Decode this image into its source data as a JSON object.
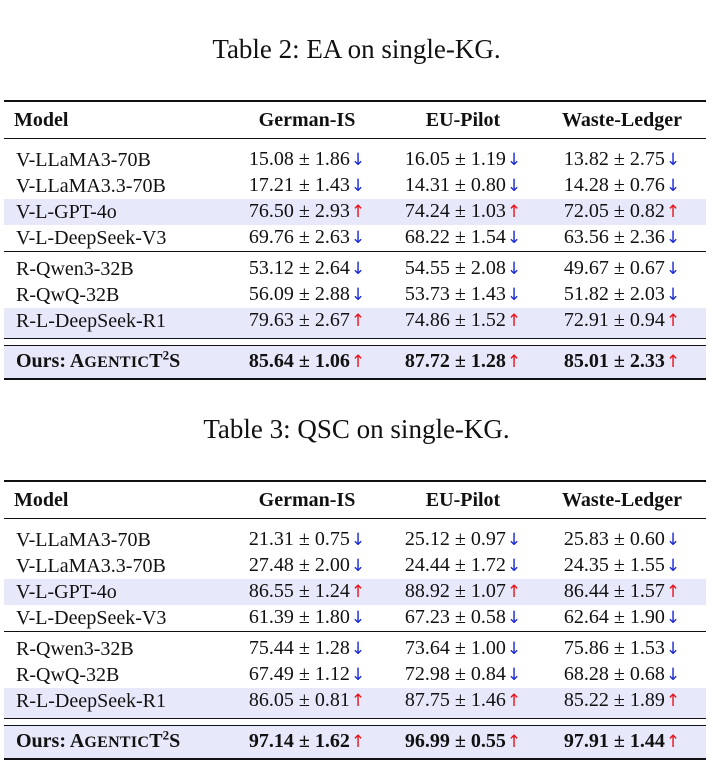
{
  "colors": {
    "highlight_row": "#e8e8fb",
    "arrow_up": "#e8141c",
    "arrow_down": "#1a2ad6"
  },
  "icons": {
    "up": "up-arrow-icon",
    "down": "down-arrow-icon"
  },
  "glyphs": {
    "up": "↑",
    "down": "↓"
  },
  "tables": [
    {
      "caption": "Table 2: EA on single-KG.",
      "headers": [
        "Model",
        "German-IS",
        "EU-Pilot",
        "Waste-Ledger"
      ],
      "rows": [
        {
          "model": "V-LLaMA3-70B",
          "values": [
            "15.08 ± 1.86",
            "16.05 ± 1.19",
            "13.82 ± 2.75"
          ],
          "trend": [
            "down",
            "down",
            "down"
          ],
          "highlight": false
        },
        {
          "model": "V-LLaMA3.3-70B",
          "values": [
            "17.21 ± 1.43",
            "14.31 ± 0.80",
            "14.28 ± 0.76"
          ],
          "trend": [
            "down",
            "down",
            "down"
          ],
          "highlight": false
        },
        {
          "model": "V-L-GPT-4o",
          "values": [
            "76.50 ± 2.93",
            "74.24 ± 1.03",
            "72.05 ± 0.82"
          ],
          "trend": [
            "up",
            "up",
            "up"
          ],
          "highlight": true
        },
        {
          "model": "V-L-DeepSeek-V3",
          "values": [
            "69.76 ± 2.63",
            "68.22 ± 1.54",
            "63.56 ± 2.36"
          ],
          "trend": [
            "down",
            "down",
            "down"
          ],
          "highlight": false
        },
        {
          "model": "R-Qwen3-32B",
          "values": [
            "53.12 ± 2.64",
            "54.55 ± 2.08",
            "49.67 ± 0.67"
          ],
          "trend": [
            "down",
            "down",
            "down"
          ],
          "highlight": false
        },
        {
          "model": "R-QwQ-32B",
          "values": [
            "56.09 ± 2.88",
            "53.73 ± 1.43",
            "51.82 ± 2.03"
          ],
          "trend": [
            "down",
            "down",
            "down"
          ],
          "highlight": false
        },
        {
          "model": "R-L-DeepSeek-R1",
          "values": [
            "79.63 ± 2.67",
            "74.86 ± 1.52",
            "72.91 ± 0.94"
          ],
          "trend": [
            "up",
            "up",
            "up"
          ],
          "highlight": true
        }
      ],
      "ours": {
        "prefix": "Ours: ",
        "name_a": "A",
        "name_b": "GENTIC",
        "name_c": "T",
        "sup": "2",
        "name_d": "S",
        "values": [
          "85.64 ± 1.06",
          "87.72 ± 1.28",
          "85.01 ± 2.33"
        ],
        "trend": [
          "up",
          "up",
          "up"
        ]
      }
    },
    {
      "caption": "Table 3: QSC on single-KG.",
      "headers": [
        "Model",
        "German-IS",
        "EU-Pilot",
        "Waste-Ledger"
      ],
      "rows": [
        {
          "model": "V-LLaMA3-70B",
          "values": [
            "21.31 ± 0.75",
            "25.12 ± 0.97",
            "25.83 ± 0.60"
          ],
          "trend": [
            "down",
            "down",
            "down"
          ],
          "highlight": false
        },
        {
          "model": "V-LLaMA3.3-70B",
          "values": [
            "27.48 ± 2.00",
            "24.44 ± 1.72",
            "24.35 ± 1.55"
          ],
          "trend": [
            "down",
            "down",
            "down"
          ],
          "highlight": false
        },
        {
          "model": "V-L-GPT-4o",
          "values": [
            "86.55 ± 1.24",
            "88.92 ± 1.07",
            "86.44 ± 1.57"
          ],
          "trend": [
            "up",
            "up",
            "up"
          ],
          "highlight": true
        },
        {
          "model": "V-L-DeepSeek-V3",
          "values": [
            "61.39 ± 1.80",
            "67.23 ± 0.58",
            "62.64 ± 1.90"
          ],
          "trend": [
            "down",
            "down",
            "down"
          ],
          "highlight": false
        },
        {
          "model": "R-Qwen3-32B",
          "values": [
            "75.44 ± 1.28",
            "73.64 ± 1.00",
            "75.86 ± 1.53"
          ],
          "trend": [
            "down",
            "down",
            "down"
          ],
          "highlight": false
        },
        {
          "model": "R-QwQ-32B",
          "values": [
            "67.49 ± 1.12",
            "72.98 ± 0.84",
            "68.28 ± 0.68"
          ],
          "trend": [
            "down",
            "down",
            "down"
          ],
          "highlight": false
        },
        {
          "model": "R-L-DeepSeek-R1",
          "values": [
            "86.05 ± 0.81",
            "87.75 ± 1.46",
            "85.22 ± 1.89"
          ],
          "trend": [
            "up",
            "up",
            "up"
          ],
          "highlight": true
        }
      ],
      "ours": {
        "prefix": "Ours: ",
        "name_a": "A",
        "name_b": "GENTIC",
        "name_c": "T",
        "sup": "2",
        "name_d": "S",
        "values": [
          "97.14 ± 1.62",
          "96.99 ± 0.55",
          "97.91 ± 1.44"
        ],
        "trend": [
          "up",
          "up",
          "up"
        ]
      }
    }
  ]
}
